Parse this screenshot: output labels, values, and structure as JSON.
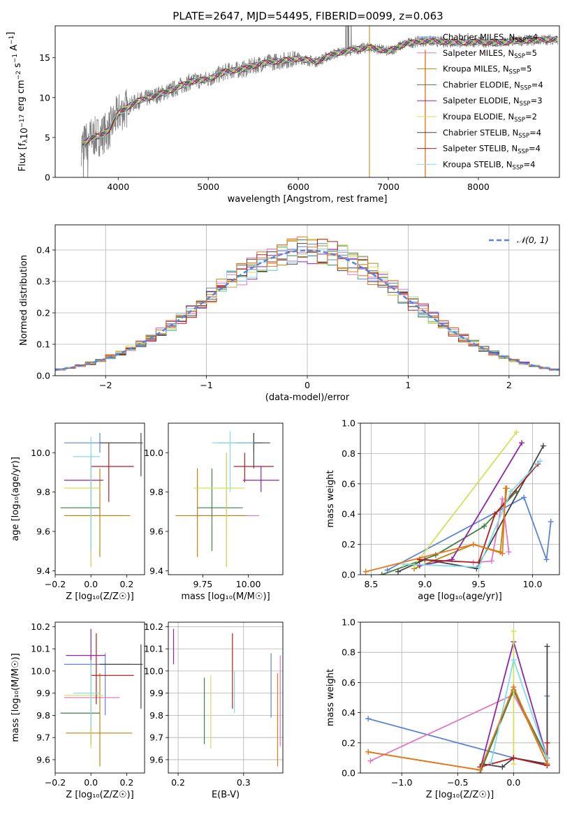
{
  "title": "PLATE=2647, MJD=54495, FIBERID=0099, z=0.063",
  "series_colors": {
    "Chabrier MILES": "#5b84d6",
    "Salpeter MILES": "#e377c2",
    "Kroupa MILES": "#b8860b",
    "Chabrier ELODIE": "#3f7f3f",
    "Salpeter ELODIE": "#8e24aa",
    "Kroupa ELODIE": "#d4e157",
    "Chabrier STELIB": "#444444",
    "Salpeter STELIB": "#b71c1c",
    "Kroupa STELIB": "#80deea",
    "orange": "#e6781e",
    "data": "#808080"
  },
  "chart_data": [
    {
      "type": "line",
      "id": "spectrum",
      "xlabel": "wavelength [Angstrom, rest frame]",
      "ylabel": "Flux [f",
      "xlim": [
        3300,
        8900
      ],
      "ylim": [
        0,
        19
      ],
      "xticks": [
        "4000",
        "5000",
        "6000",
        "7000",
        "8000"
      ],
      "yticks": [
        "0",
        "5",
        "10",
        "15"
      ],
      "legend": "upper right",
      "legend_entries": [
        {
          "name": "Chabrier MILES, N",
          "sub": "SSP",
          "n": "=4"
        },
        {
          "name": "Salpeter MILES, N",
          "sub": "SSP",
          "n": "=5"
        },
        {
          "name": "Kroupa MILES, N",
          "sub": "SSP",
          "n": "=5"
        },
        {
          "name": "Chabrier ELODIE, N",
          "sub": "SSP",
          "n": "=4"
        },
        {
          "name": "Salpeter ELODIE, N",
          "sub": "SSP",
          "n": "=3"
        },
        {
          "name": "Kroupa ELODIE, N",
          "sub": "SSP",
          "n": "=2"
        },
        {
          "name": "Chabrier STELIB, N",
          "sub": "SSP",
          "n": "=4"
        },
        {
          "name": "Salpeter STELIB, N",
          "sub": "SSP",
          "n": "=4"
        },
        {
          "name": "Kroupa STELIB, N",
          "sub": "SSP",
          "n": "=4"
        }
      ],
      "continuum_x": [
        3600,
        3700,
        3800,
        3900,
        4000,
        4200,
        4400,
        4600,
        4800,
        5000,
        5200,
        5400,
        5600,
        5800,
        6000,
        6200,
        6400,
        6600,
        6800,
        7000,
        7200,
        7400,
        7600,
        7800,
        8000,
        8200,
        8400,
        8600,
        8800
      ],
      "continuum_y": [
        4.0,
        5.0,
        5.2,
        6.0,
        8.0,
        9.5,
        10.2,
        11.0,
        12.0,
        12.3,
        13.3,
        13.6,
        14.3,
        14.6,
        14.9,
        14.5,
        15.5,
        16.0,
        16.3,
        15.8,
        16.8,
        17.1,
        17.0,
        16.9,
        17.0,
        16.8,
        17.1,
        17.2,
        17.3
      ]
    },
    {
      "type": "bar",
      "id": "residual-histogram",
      "xlabel": "(data-model)/error",
      "ylabel": "Normed distribution",
      "xlim": [
        -2.5,
        2.5
      ],
      "ylim": [
        0,
        0.48
      ],
      "xticks": [
        "−2",
        "−1",
        "0",
        "1",
        "2"
      ],
      "yticks": [
        "0.0",
        "0.1",
        "0.2",
        "0.3",
        "0.4"
      ],
      "legend": "upper right",
      "legend_label": "𝒩(0, 1)",
      "gaussian": {
        "mean": 0,
        "sigma": 1
      }
    },
    {
      "type": "scatter",
      "id": "age-vs-Z",
      "xlabel": "Z [log₁₀(Z/Z☉)]",
      "ylabel": "age  [log₁₀(age/yr)]",
      "xlim": [
        -0.2,
        0.3
      ],
      "ylim": [
        9.38,
        10.15
      ],
      "xticks": [
        "−0.2",
        "0.0",
        "0.2"
      ],
      "yticks": [
        "9.4",
        "9.6",
        "9.8",
        "10.0"
      ],
      "crosses": [
        {
          "s": "Chabrier MILES",
          "x": 0.05,
          "xe": [
            -0.15,
            0.25
          ],
          "y": 10.05,
          "ye": [
            10.0,
            10.1
          ]
        },
        {
          "s": "Salpeter MILES",
          "x": 0.0,
          "xe": [
            -0.15,
            0.2
          ],
          "y": 9.68,
          "ye": [
            9.42,
            10.0
          ]
        },
        {
          "s": "Kroupa MILES",
          "x": 0.05,
          "xe": [
            -0.15,
            0.22
          ],
          "y": 9.68,
          "ye": [
            9.47,
            9.92
          ]
        },
        {
          "s": "Chabrier ELODIE",
          "x": 0.0,
          "xe": [
            -0.17,
            0.05
          ],
          "y": 9.72,
          "ye": [
            9.5,
            9.92
          ]
        },
        {
          "s": "Salpeter ELODIE",
          "x": 0.0,
          "xe": [
            -0.15,
            0.07
          ],
          "y": 9.86,
          "ye": [
            9.75,
            9.93
          ]
        },
        {
          "s": "Kroupa ELODIE",
          "x": 0.0,
          "xe": [
            -0.15,
            0.05
          ],
          "y": 9.82,
          "ye": [
            9.42,
            10.0
          ]
        },
        {
          "s": "Chabrier STELIB",
          "x": 0.28,
          "xe": [
            0.05,
            0.29
          ],
          "y": 10.05,
          "ye": [
            9.88,
            10.1
          ]
        },
        {
          "s": "Salpeter STELIB",
          "x": 0.1,
          "xe": [
            0.0,
            0.24
          ],
          "y": 9.93,
          "ye": [
            9.75,
            10.05
          ]
        },
        {
          "s": "Kroupa STELIB",
          "x": 0.0,
          "xe": [
            -0.1,
            0.05
          ],
          "y": 9.98,
          "ye": [
            9.5,
            10.08
          ]
        }
      ]
    },
    {
      "type": "scatter",
      "id": "age-vs-mass",
      "xlabel": "mass [log₁₀(M/M☉)]",
      "ylabel": "",
      "xlim": [
        9.56,
        10.19
      ],
      "ylim": [
        9.38,
        10.15
      ],
      "xticks": [
        "9.75",
        "10.00"
      ],
      "yticks": [
        "9.4",
        "9.6",
        "9.8",
        "10.0"
      ],
      "crosses": [
        {
          "s": "Chabrier MILES",
          "x": 10.03,
          "xe": [
            9.83,
            10.08
          ],
          "y": 10.05,
          "ye": [
            10.0,
            10.1
          ]
        },
        {
          "s": "Salpeter MILES",
          "x": 9.88,
          "xe": [
            9.7,
            10.06
          ],
          "y": 9.68,
          "ye": [
            9.42,
            10.0
          ]
        },
        {
          "s": "Kroupa MILES",
          "x": 9.72,
          "xe": [
            9.6,
            9.99
          ],
          "y": 9.68,
          "ye": [
            9.47,
            9.92
          ]
        },
        {
          "s": "Chabrier ELODIE",
          "x": 9.8,
          "xe": [
            9.72,
            9.97
          ],
          "y": 9.72,
          "ye": [
            9.5,
            9.92
          ]
        },
        {
          "s": "Salpeter ELODIE",
          "x": 10.07,
          "xe": [
            9.97,
            10.17
          ],
          "y": 9.86,
          "ye": [
            9.8,
            9.93
          ]
        },
        {
          "s": "Kroupa ELODIE",
          "x": 9.88,
          "xe": [
            9.7,
            9.98
          ],
          "y": 9.82,
          "ye": [
            9.42,
            10.0
          ]
        },
        {
          "s": "Chabrier STELIB",
          "x": 10.03,
          "xe": [
            9.93,
            10.12
          ],
          "y": 10.05,
          "ye": [
            9.92,
            10.1
          ]
        },
        {
          "s": "Salpeter STELIB",
          "x": 9.98,
          "xe": [
            9.92,
            10.14
          ],
          "y": 9.93,
          "ye": [
            9.85,
            10.0
          ]
        },
        {
          "s": "Kroupa STELIB",
          "x": 9.9,
          "xe": [
            9.8,
            10.03
          ],
          "y": 10.05,
          "ye": [
            9.8,
            10.11
          ]
        }
      ]
    },
    {
      "type": "line",
      "id": "mass-weight-vs-age",
      "xlabel": "age  [log₁₀(age/yr)]",
      "ylabel": "mass weight",
      "xlim": [
        8.4,
        10.25
      ],
      "ylim": [
        0,
        1.0
      ],
      "xticks": [
        "8.5",
        "9.0",
        "9.5",
        "10.0"
      ],
      "yticks": [
        "0.0",
        "0.2",
        "0.4",
        "0.6",
        "0.8",
        "1.0"
      ],
      "series": [
        {
          "name": "Chabrier MILES",
          "x": [
            8.65,
            9.92,
            10.13,
            10.17
          ],
          "y": [
            0.03,
            0.51,
            0.1,
            0.35
          ]
        },
        {
          "name": "Salpeter MILES",
          "x": [
            9.45,
            9.62,
            9.72,
            9.78
          ],
          "y": [
            0.08,
            0.09,
            0.5,
            0.15
          ]
        },
        {
          "name": "Kroupa MILES",
          "x": [
            8.9,
            9.45,
            9.7,
            9.76
          ],
          "y": [
            0.04,
            0.2,
            0.15,
            0.57
          ]
        },
        {
          "name": "Chabrier ELODIE",
          "x": [
            8.6,
            9.1,
            9.55,
            9.85
          ],
          "y": [
            0.0,
            0.13,
            0.32,
            0.55
          ]
        },
        {
          "name": "Salpeter ELODIE",
          "x": [
            8.95,
            9.25,
            9.9
          ],
          "y": [
            0.06,
            0.1,
            0.87
          ]
        },
        {
          "name": "Kroupa ELODIE",
          "x": [
            8.9,
            9.85
          ],
          "y": [
            0.06,
            0.94
          ]
        },
        {
          "name": "Chabrier STELIB",
          "x": [
            8.75,
            9.0,
            9.48,
            10.1
          ],
          "y": [
            0.02,
            0.1,
            0.04,
            0.85
          ]
        },
        {
          "name": "Salpeter STELIB",
          "x": [
            8.95,
            9.5,
            9.65,
            10.05
          ],
          "y": [
            0.1,
            0.08,
            0.4,
            0.73
          ]
        },
        {
          "name": "Kroupa STELIB",
          "x": [
            8.8,
            9.5,
            9.8,
            10.07
          ],
          "y": [
            0.07,
            0.05,
            0.55,
            0.75
          ]
        },
        {
          "name": "orange",
          "x": [
            8.45,
            9.45,
            9.72,
            9.75
          ],
          "y": [
            0.02,
            0.2,
            0.14,
            0.57
          ]
        }
      ]
    },
    {
      "type": "scatter",
      "id": "mass-vs-Z",
      "xlabel": "Z [log₁₀(Z/Z☉)]",
      "ylabel": "mass [log₁₀(M/M☉)]",
      "xlim": [
        -0.2,
        0.3
      ],
      "ylim": [
        9.54,
        10.22
      ],
      "xticks": [
        "−0.2",
        "0.0",
        "0.2"
      ],
      "yticks": [
        "9.6",
        "9.7",
        "9.8",
        "9.9",
        "10.0",
        "10.1",
        "10.2"
      ],
      "crosses": [
        {
          "s": "Chabrier MILES",
          "x": 0.08,
          "xe": [
            -0.15,
            0.22
          ],
          "y": 10.03,
          "ye": [
            9.8,
            10.08
          ]
        },
        {
          "s": "Salpeter MILES",
          "x": 0.0,
          "xe": [
            -0.15,
            0.16
          ],
          "y": 9.88,
          "ye": [
            9.7,
            10.07
          ]
        },
        {
          "s": "Kroupa MILES",
          "x": 0.05,
          "xe": [
            -0.14,
            0.23
          ],
          "y": 9.72,
          "ye": [
            9.57,
            9.99
          ]
        },
        {
          "s": "Chabrier ELODIE",
          "x": 0.0,
          "xe": [
            -0.17,
            0.05
          ],
          "y": 9.81,
          "ye": [
            9.67,
            9.97
          ]
        },
        {
          "s": "Salpeter ELODIE",
          "x": 0.0,
          "xe": [
            -0.14,
            0.08
          ],
          "y": 10.07,
          "ye": [
            9.97,
            10.19
          ]
        },
        {
          "s": "Kroupa ELODIE",
          "x": 0.0,
          "xe": [
            -0.15,
            0.07
          ],
          "y": 9.89,
          "ye": [
            9.65,
            10.02
          ]
        },
        {
          "s": "Chabrier STELIB",
          "x": 0.28,
          "xe": [
            0.05,
            0.29
          ],
          "y": 10.03,
          "ye": [
            9.83,
            10.12
          ]
        },
        {
          "s": "Salpeter STELIB",
          "x": 0.03,
          "xe": [
            0.0,
            0.24
          ],
          "y": 9.98,
          "ye": [
            9.85,
            10.17
          ]
        },
        {
          "s": "Kroupa STELIB",
          "x": 0.0,
          "xe": [
            -0.1,
            0.05
          ],
          "y": 9.9,
          "ye": [
            9.75,
            10.05
          ]
        }
      ]
    },
    {
      "type": "scatter",
      "id": "mass-vs-EBV",
      "xlabel": "E(B-V)",
      "ylabel": "",
      "xlim": [
        0.185,
        0.36
      ],
      "ylim": [
        9.54,
        10.22
      ],
      "xticks": [
        "0.2",
        "0.3"
      ],
      "yticks": [
        "9.6",
        "9.7",
        "9.8",
        "9.9",
        "10.0",
        "10.1",
        "10.2"
      ],
      "crosses": [
        {
          "s": "Salpeter ELODIE",
          "x": 0.193,
          "y": 10.08,
          "ye": [
            10.03,
            10.19
          ]
        },
        {
          "s": "Chabrier ELODIE",
          "x": 0.24,
          "y": 9.82,
          "ye": [
            9.67,
            9.97
          ]
        },
        {
          "s": "Kroupa ELODIE",
          "x": 0.25,
          "y": 9.8,
          "ye": [
            9.65,
            9.98
          ]
        },
        {
          "s": "Salpeter STELIB",
          "x": 0.283,
          "y": 10.0,
          "ye": [
            9.83,
            10.17
          ]
        },
        {
          "s": "Kroupa STELIB",
          "x": 0.286,
          "y": 9.9,
          "ye": [
            9.81,
            10.0
          ]
        },
        {
          "s": "Chabrier MILES",
          "x": 0.342,
          "y": 9.94,
          "ye": [
            9.79,
            10.08
          ]
        },
        {
          "s": "orange",
          "x": 0.352,
          "y": 9.78,
          "ye": [
            9.57,
            9.99
          ]
        },
        {
          "s": "Salpeter MILES",
          "x": 0.356,
          "y": 9.87,
          "ye": [
            9.66,
            10.07
          ]
        }
      ]
    },
    {
      "type": "line",
      "id": "mass-weight-vs-Z",
      "xlabel": "Z [log₁₀(Z/Z☉)]",
      "ylabel": "mass weight",
      "xlim": [
        -1.37,
        0.41
      ],
      "ylim": [
        0,
        1.0
      ],
      "xticks": [
        "−1.0",
        "−0.5",
        "0.0"
      ],
      "yticks": [
        "0.0",
        "0.2",
        "0.4",
        "0.6",
        "0.8",
        "1.0"
      ],
      "series": [
        {
          "name": "Chabrier MILES",
          "x": [
            -1.3,
            0.0,
            0.3,
            0.3
          ],
          "y": [
            0.36,
            0.1,
            0.05,
            0.51
          ]
        },
        {
          "name": "Salpeter MILES",
          "x": [
            -1.28,
            0.0,
            0.3
          ],
          "y": [
            0.08,
            0.52,
            0.1
          ]
        },
        {
          "name": "Kroupa MILES",
          "x": [
            -1.3,
            -0.3,
            0.0,
            0.3
          ],
          "y": [
            0.14,
            0.02,
            0.55,
            0.06
          ]
        },
        {
          "name": "Chabrier ELODIE",
          "x": [
            -0.3,
            0.0,
            0.3
          ],
          "y": [
            0.0,
            0.55,
            0.1
          ]
        },
        {
          "name": "Salpeter ELODIE",
          "x": [
            -0.3,
            0.0,
            0.3
          ],
          "y": [
            0.02,
            0.87,
            0.1
          ]
        },
        {
          "name": "Kroupa ELODIE",
          "x": [
            0.0,
            0.0
          ],
          "y": [
            0.06,
            0.94
          ]
        },
        {
          "name": "Chabrier STELIB",
          "x": [
            -0.28,
            -0.1,
            0.0,
            0.3,
            0.3
          ],
          "y": [
            0.06,
            0.04,
            0.1,
            0.06,
            0.84
          ]
        },
        {
          "name": "Salpeter STELIB",
          "x": [
            -0.3,
            0.0,
            0.3,
            0.3
          ],
          "y": [
            0.04,
            0.1,
            0.05,
            0.2
          ]
        },
        {
          "name": "Kroupa STELIB",
          "x": [
            -0.2,
            0.0,
            0.3
          ],
          "y": [
            0.07,
            0.75,
            0.1
          ]
        },
        {
          "name": "orange",
          "x": [
            -1.3,
            -0.3,
            0.0,
            0.3
          ],
          "y": [
            0.14,
            0.02,
            0.57,
            0.06
          ]
        }
      ]
    }
  ]
}
